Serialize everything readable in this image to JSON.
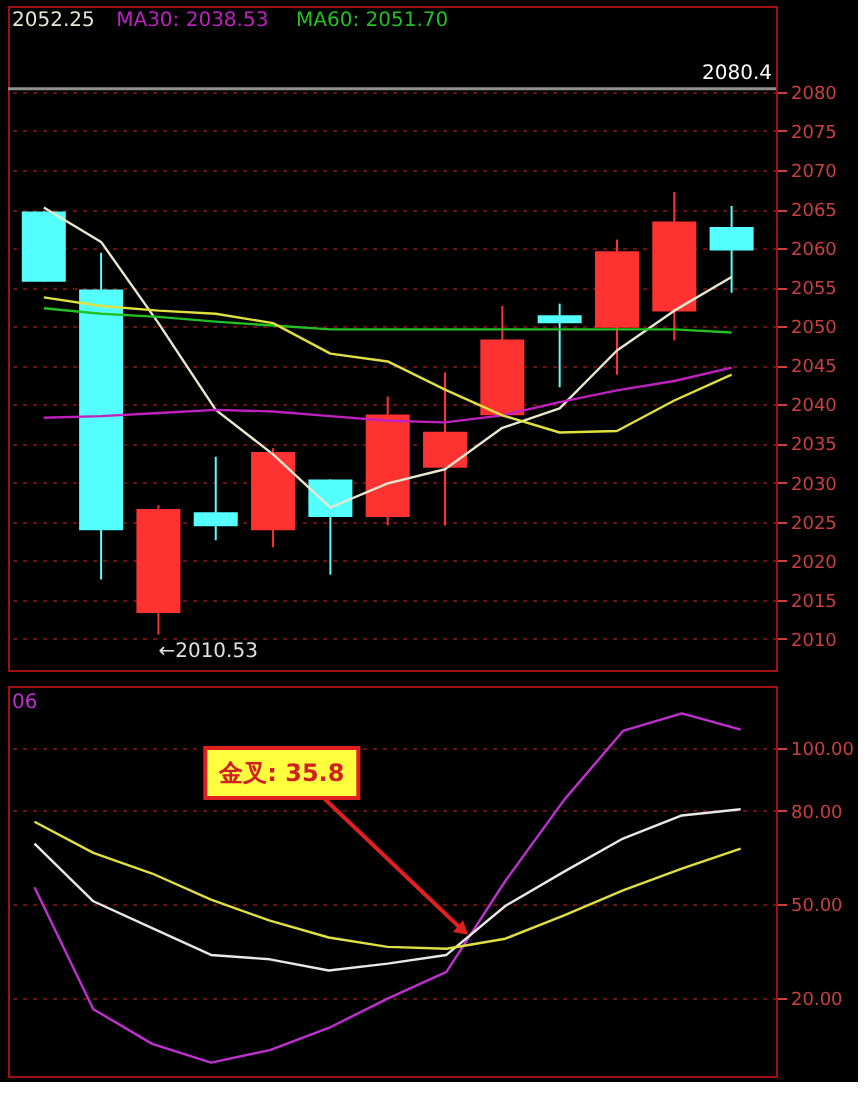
{
  "chart_data": [
    {
      "type": "candlestick",
      "categories": [
        null,
        null,
        null,
        null,
        null,
        null,
        null,
        null,
        null,
        null,
        null,
        null,
        null
      ],
      "ohlc": [
        [
          2064.7,
          2064.7,
          2055.7,
          2055.7
        ],
        [
          2054.7,
          2059.4,
          2017.6,
          2023.9
        ],
        [
          2013.3,
          2027.1,
          2010.53,
          2026.6
        ],
        [
          2026.2,
          2033.3,
          2022.6,
          2024.4
        ],
        [
          2023.9,
          2034.4,
          2021.7,
          2033.9
        ],
        [
          2030.4,
          2030.4,
          2018.2,
          2025.6
        ],
        [
          2025.6,
          2041.0,
          2024.5,
          2038.7
        ],
        [
          2031.9,
          2044.1,
          2024.5,
          2036.5
        ],
        [
          2038.6,
          2052.6,
          2038.6,
          2048.3
        ],
        [
          2051.4,
          2052.9,
          2042.2,
          2050.4
        ],
        [
          2049.8,
          2061.1,
          2043.8,
          2059.6
        ],
        [
          2051.9,
          2067.2,
          2048.2,
          2063.4
        ],
        [
          2062.7,
          2065.4,
          2054.3,
          2059.7
        ]
      ],
      "colors": [
        "#54ffff",
        "#54ffff",
        "#ff3232",
        "#54ffff",
        "#ff3232",
        "#54ffff",
        "#ff3232",
        "#ff3232",
        "#ff3232",
        "#54ffff",
        "#ff3232",
        "#ff3232",
        "#54ffff"
      ],
      "series": [
        {
          "type": "line",
          "color": "#e8e8d0",
          "values": [
            2065.2,
            2060.8,
            2050.4,
            2039.3,
            2033.6,
            2026.8,
            2029.9,
            2031.7,
            2037.0,
            2039.5,
            2046.9,
            2052.0,
            2056.3
          ]
        },
        {
          "type": "line",
          "color": "#c020c0",
          "values": [
            2038.3,
            2038.5,
            2038.9,
            2039.3,
            2039.1,
            2038.5,
            2037.9,
            2037.7,
            2038.6,
            2040.3,
            2041.8,
            2043.0,
            2044.7
          ]
        },
        {
          "type": "line",
          "color": "#22c022",
          "values": [
            2052.3,
            2051.6,
            2051.2,
            2050.6,
            2050.1,
            2049.6,
            2049.6,
            2049.6,
            2049.6,
            2049.6,
            2049.6,
            2049.6,
            2049.2
          ]
        },
        {
          "type": "line",
          "color": "#e0e040",
          "values": [
            2053.7,
            2052.6,
            2052.0,
            2051.6,
            2050.4,
            2046.5,
            2045.5,
            2041.9,
            2038.6,
            2036.4,
            2036.6,
            2040.5,
            2043.8
          ]
        }
      ],
      "ylim": [
        2006,
        2091
      ],
      "yticks": [
        2010,
        2015,
        2020,
        2025,
        2030,
        2035,
        2040,
        2045,
        2050,
        2055,
        2060,
        2065,
        2070,
        2075,
        2080
      ],
      "ref_lines": [
        {
          "axis": "y",
          "value": 2080.4,
          "label": "2080.4",
          "color": "#909090"
        }
      ],
      "annotations": [
        "2052.25",
        "MA30: 2038.53",
        "MA60: 2051.70",
        "←2010.53"
      ],
      "grid": "y",
      "tick_labels": "y"
    },
    {
      "type": "line",
      "categories": [
        null,
        null,
        null,
        null,
        null,
        null,
        null,
        null,
        null,
        null,
        null,
        null,
        null
      ],
      "series": [
        {
          "color": "#c030d0",
          "values": [
            55.5,
            16.4,
            5.3,
            -0.7,
            3.3,
            10.4,
            19.8,
            28.4,
            57.5,
            83.5,
            105.6,
            111.2,
            106.0
          ]
        },
        {
          "color": "#e8e8e8",
          "values": [
            69.5,
            51.0,
            42.4,
            33.8,
            32.4,
            28.8,
            31.0,
            33.8,
            49.5,
            60.5,
            71.1,
            78.5,
            80.5
          ]
        },
        {
          "color": "#e0e040",
          "values": [
            76.5,
            66.5,
            59.9,
            51.5,
            44.8,
            39.4,
            36.4,
            35.8,
            39.0,
            46.5,
            54.5,
            61.5,
            67.9
          ]
        }
      ],
      "ylim": [
        -5,
        120
      ],
      "yticks": [
        {
          "value": 20,
          "label": "20.00"
        },
        {
          "value": 50,
          "label": "50.00"
        },
        {
          "value": 80,
          "label": "80.00"
        },
        {
          "value": 100,
          "label": "100.00"
        }
      ],
      "annotations": [
        "06",
        "金叉: 35.8"
      ],
      "grid": "y",
      "tick_labels": "y",
      "marker": "none",
      "line_style": "solid"
    }
  ]
}
